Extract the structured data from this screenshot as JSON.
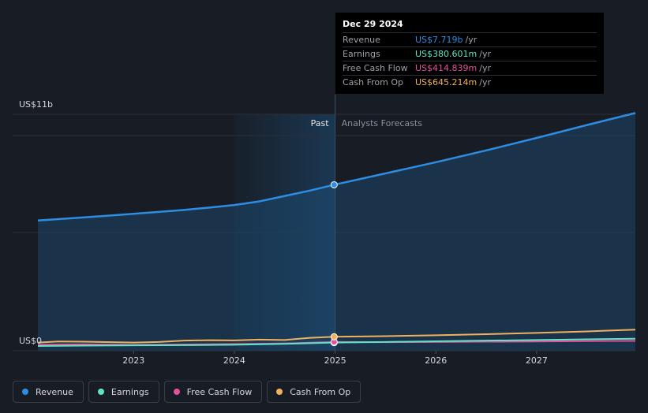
{
  "tooltip": {
    "date": "Dec 29 2024",
    "rows": [
      {
        "label": "Revenue",
        "value": "US$7.719b",
        "unit": "/yr",
        "color": "#2d8de3"
      },
      {
        "label": "Earnings",
        "value": "US$380.601m",
        "unit": "/yr",
        "color": "#5fe3c2"
      },
      {
        "label": "Free Cash Flow",
        "value": "US$414.839m",
        "unit": "/yr",
        "color": "#e0529a"
      },
      {
        "label": "Cash From Op",
        "value": "US$645.214m",
        "unit": "/yr",
        "color": "#f0b15f"
      }
    ]
  },
  "labels": {
    "past": "Past",
    "forecast": "Analysts Forecasts"
  },
  "legend": [
    {
      "label": "Revenue",
      "color": "#2d8de3"
    },
    {
      "label": "Earnings",
      "color": "#5fe3c2"
    },
    {
      "label": "Free Cash Flow",
      "color": "#e0529a"
    },
    {
      "label": "Cash From Op",
      "color": "#f0b15f"
    }
  ],
  "chart_data": {
    "type": "line",
    "y_top_label": "US$11b",
    "y_bottom_label": "US$0",
    "ylim": [
      0,
      11
    ],
    "xlim": [
      2022.05,
      2027.98
    ],
    "x_ticks": [
      "2023",
      "2024",
      "2025",
      "2026",
      "2027"
    ],
    "divider_x": 2025.0,
    "highlight_x": 2024.99,
    "series": [
      {
        "name": "Revenue",
        "color": "#2d8de3",
        "x": [
          2022.05,
          2022.5,
          2023.0,
          2023.5,
          2023.75,
          2024.0,
          2024.25,
          2024.5,
          2024.75,
          2024.99,
          2025.5,
          2026.0,
          2026.5,
          2027.0,
          2027.5,
          2027.98
        ],
        "y": [
          6.06,
          6.2,
          6.37,
          6.55,
          6.66,
          6.78,
          6.95,
          7.2,
          7.45,
          7.72,
          8.25,
          8.77,
          9.32,
          9.9,
          10.5,
          11.06
        ]
      },
      {
        "name": "Earnings",
        "color": "#5fe3c2",
        "x": [
          2022.05,
          2022.5,
          2023.0,
          2023.5,
          2024.0,
          2024.5,
          2024.99,
          2025.5,
          2026.0,
          2026.5,
          2027.0,
          2027.5,
          2027.98
        ],
        "y": [
          0.22,
          0.24,
          0.25,
          0.26,
          0.28,
          0.32,
          0.38,
          0.41,
          0.44,
          0.47,
          0.5,
          0.53,
          0.56
        ]
      },
      {
        "name": "Free Cash Flow",
        "color": "#e0529a",
        "x": [
          2022.05,
          2022.5,
          2023.0,
          2023.5,
          2024.0,
          2024.5,
          2024.99,
          2025.5,
          2026.0,
          2026.5,
          2027.0,
          2027.5,
          2027.98
        ],
        "y": [
          0.28,
          0.3,
          0.27,
          0.29,
          0.31,
          0.34,
          0.41,
          0.4,
          0.41,
          0.42,
          0.43,
          0.45,
          0.46
        ]
      },
      {
        "name": "Cash From Op",
        "color": "#f0b15f",
        "x": [
          2022.05,
          2022.25,
          2022.5,
          2023.0,
          2023.25,
          2023.5,
          2023.75,
          2024.0,
          2024.25,
          2024.5,
          2024.75,
          2024.99,
          2025.5,
          2026.0,
          2026.5,
          2027.0,
          2027.5,
          2027.98
        ],
        "y": [
          0.38,
          0.43,
          0.42,
          0.38,
          0.41,
          0.47,
          0.49,
          0.48,
          0.52,
          0.5,
          0.6,
          0.65,
          0.68,
          0.72,
          0.77,
          0.83,
          0.9,
          0.98
        ]
      }
    ]
  }
}
